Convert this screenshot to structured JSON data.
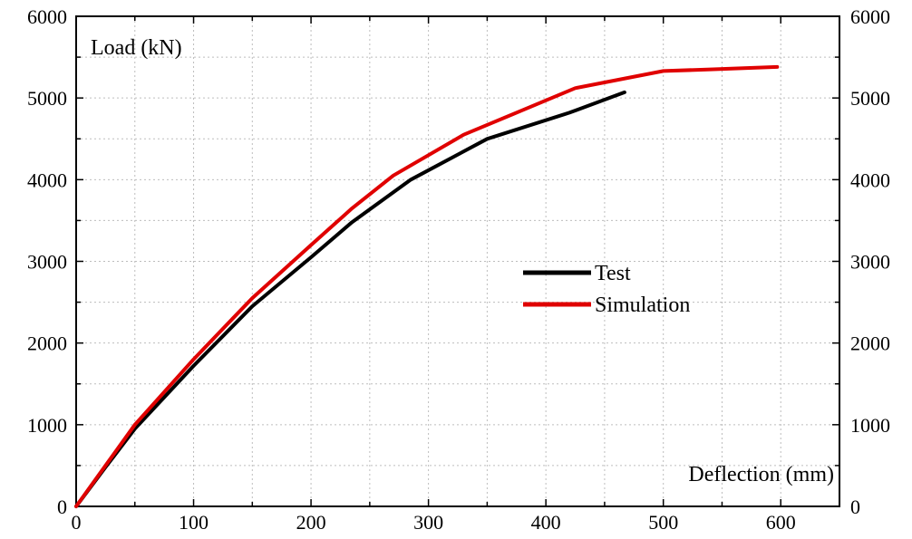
{
  "chart_data": {
    "type": "line",
    "title": "",
    "ylabel": "Load (kN)",
    "xlabel": "Deflection (mm)",
    "xlim": [
      0,
      650
    ],
    "ylim": [
      0,
      6000
    ],
    "x_ticks": [
      0,
      100,
      200,
      300,
      400,
      500,
      600
    ],
    "y_ticks": [
      0,
      1000,
      2000,
      3000,
      4000,
      5000,
      6000
    ],
    "grid": true,
    "grid_style": "dotted",
    "legend_position": "center-right",
    "series": [
      {
        "name": "Test",
        "color": "#000000",
        "x": [
          0,
          25,
          50,
          100,
          150,
          200,
          235,
          285,
          350,
          420,
          467
        ],
        "y": [
          0,
          480,
          950,
          1720,
          2450,
          3050,
          3480,
          4000,
          4500,
          4820,
          5070
        ]
      },
      {
        "name": "Simulation",
        "color": "#e00000",
        "x": [
          0,
          25,
          50,
          100,
          150,
          200,
          235,
          270,
          330,
          380,
          425,
          500,
          540,
          597
        ],
        "y": [
          0,
          500,
          1000,
          1800,
          2550,
          3200,
          3650,
          4050,
          4550,
          4850,
          5120,
          5330,
          5350,
          5380
        ]
      }
    ]
  }
}
